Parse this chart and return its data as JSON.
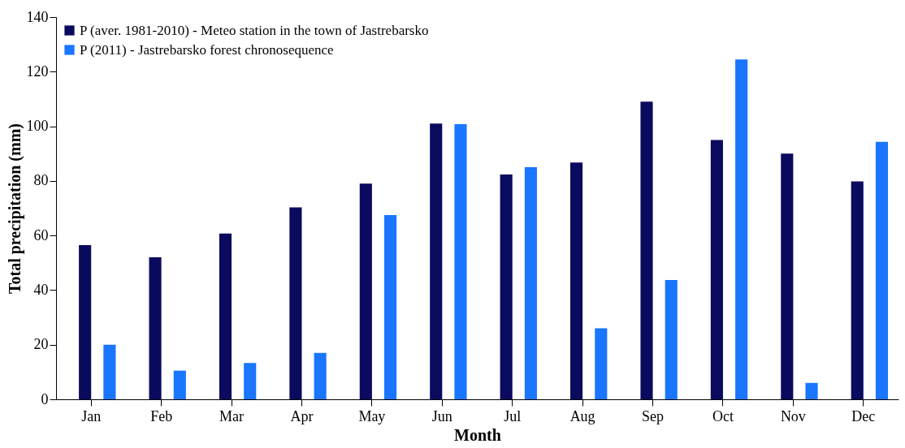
{
  "chart_data": {
    "type": "bar",
    "xlabel": "Month",
    "ylabel": "Total precipitation (mm)",
    "categories": [
      "Jan",
      "Feb",
      "Mar",
      "Apr",
      "May",
      "Jun",
      "Jul",
      "Aug",
      "Sep",
      "Oct",
      "Nov",
      "Dec"
    ],
    "series": [
      {
        "name": "P (aver. 1981-2010) - Meteo station in the town of Jastrebarsko",
        "color": "#0a0a5e",
        "values": [
          56.5,
          52,
          60.7,
          70.3,
          79,
          101,
          82.3,
          86.7,
          109,
          95,
          90,
          79.8
        ]
      },
      {
        "name": "P (2011) - Jastrebarsko forest chronosequence",
        "color": "#1a75ff",
        "values": [
          20,
          10.5,
          13.3,
          17,
          67.5,
          100.8,
          85,
          26,
          43.7,
          124.5,
          6,
          94.3
        ]
      }
    ],
    "ylim": [
      0,
      140
    ],
    "yticks": [
      0,
      20,
      40,
      60,
      80,
      100,
      120,
      140
    ],
    "grid": false,
    "legend": "top left"
  }
}
